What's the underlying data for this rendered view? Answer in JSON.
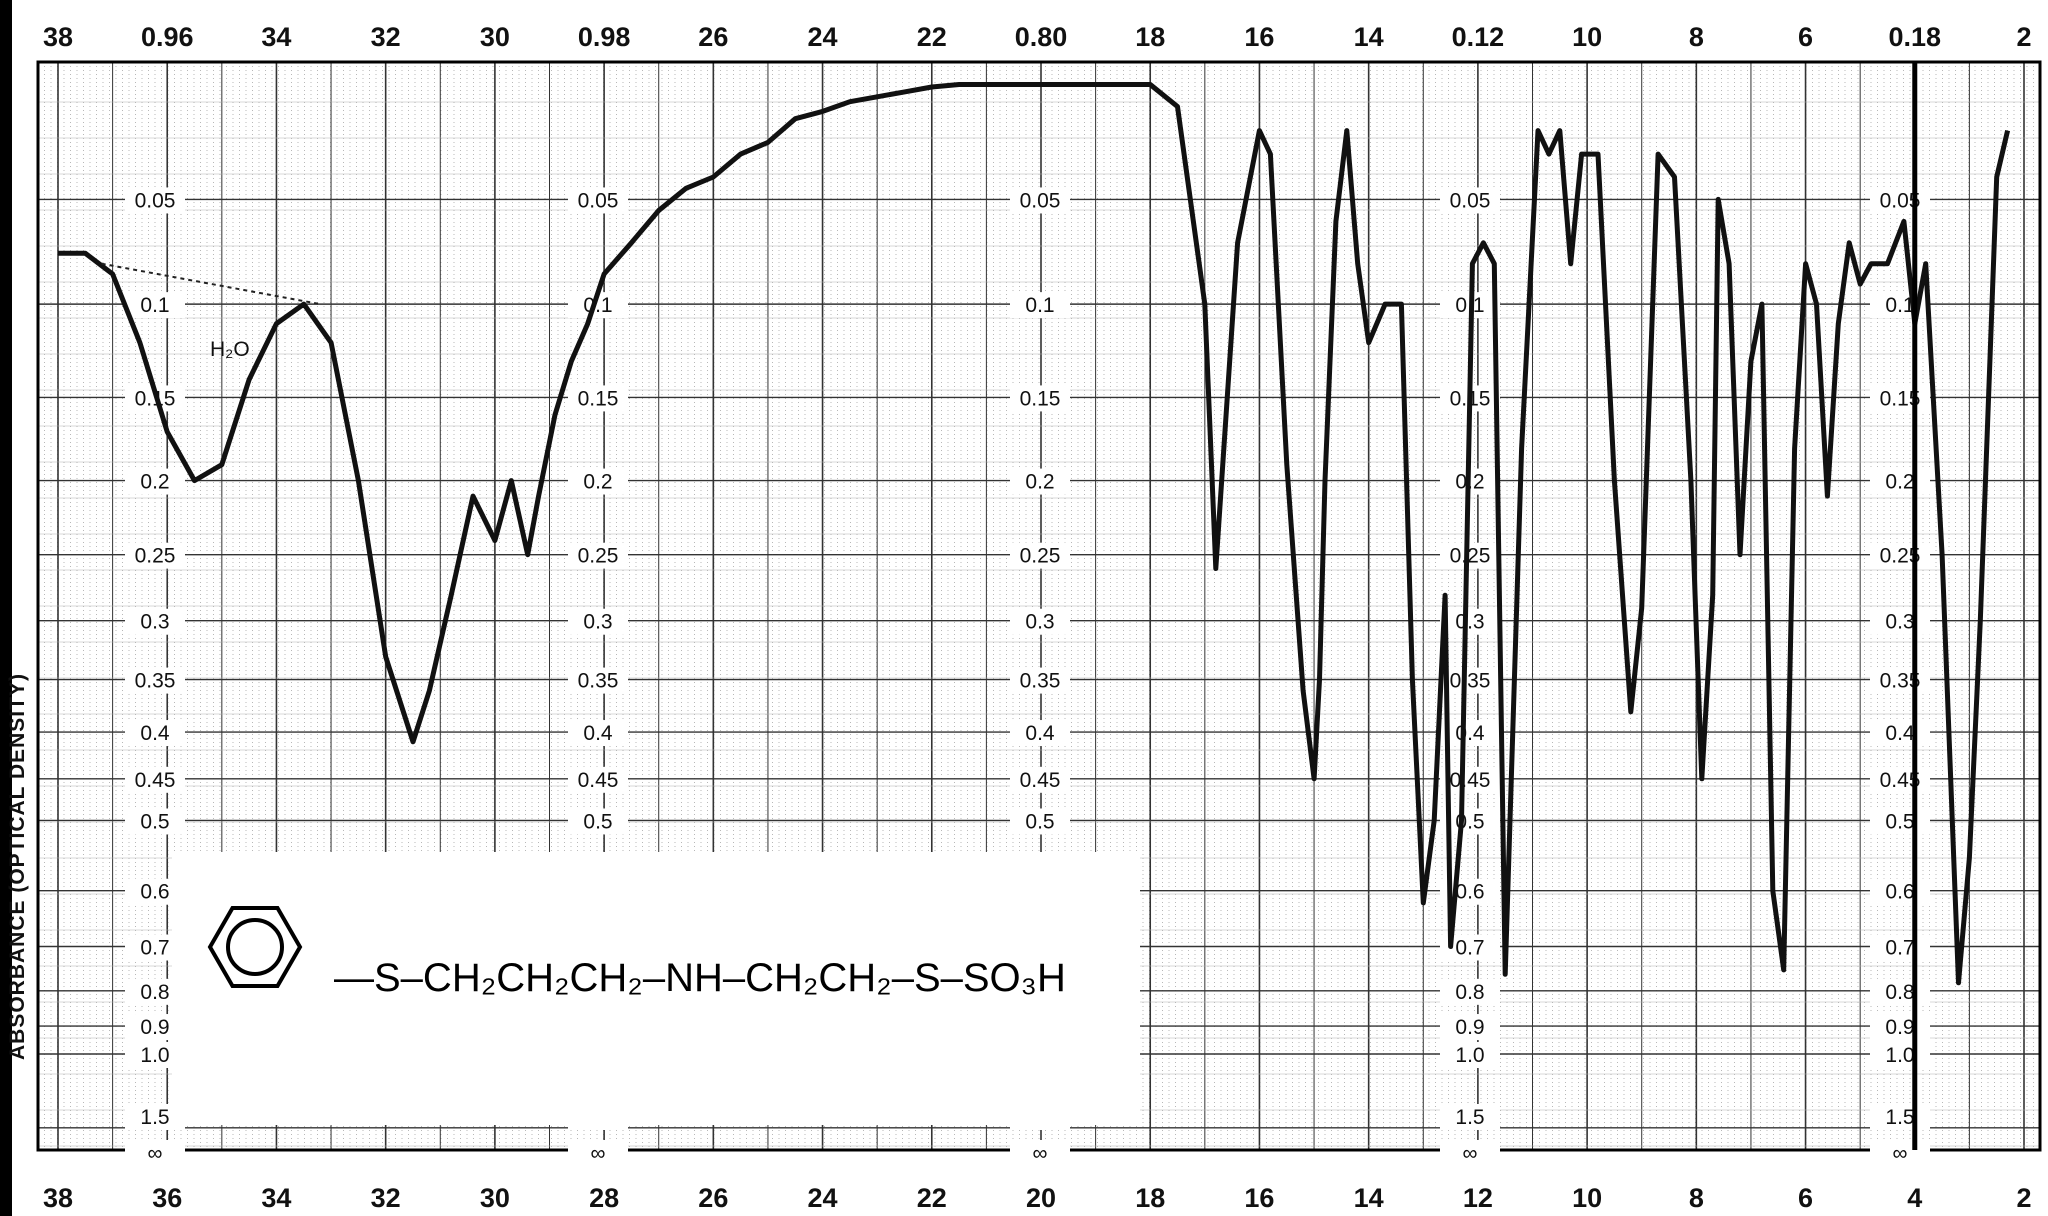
{
  "axes": {
    "ylabel": "ABSORBANCE (OPTICAL DENSITY)",
    "top_ticks": [
      "38",
      "0.96",
      "34",
      "32",
      "30",
      "0.98",
      "26",
      "24",
      "22",
      "0.80",
      "18",
      "16",
      "14",
      "0.12",
      "10",
      "8",
      "6",
      "0.18",
      "2"
    ],
    "bottom_ticks": [
      "38",
      "36",
      "34",
      "32",
      "30",
      "28",
      "26",
      "24",
      "22",
      "20",
      "18",
      "16",
      "14",
      "12",
      "10",
      "8",
      "6",
      "4",
      "2"
    ],
    "absorbance_labels": [
      "0.05",
      "0.1",
      "0.15",
      "0.2",
      "0.25",
      "0.3",
      "0.35",
      "0.4",
      "0.45",
      "0.5",
      "0.6",
      "0.7",
      "0.8",
      "0.9",
      "1.0",
      "1.5",
      "∞"
    ]
  },
  "annotation": {
    "water_label": "H₂O"
  },
  "structure": {
    "formula_text": "—S–CH₂CH₂CH₂–NH–CH₂CH₂–S–SO₃H"
  },
  "chart_data": {
    "type": "line",
    "title": "",
    "xlabel": "",
    "ylabel": "ABSORBANCE (OPTICAL DENSITY)",
    "x_direction": "decreasing",
    "xlim": [
      38,
      2
    ],
    "ylim": [
      0,
      1.5
    ],
    "series": [
      {
        "x": [
          38,
          37.5,
          37,
          36.5,
          36,
          35.5,
          35,
          34.5,
          34,
          33.5,
          33,
          32.5,
          32,
          31.5,
          31.2,
          30.8,
          30.4,
          30,
          29.7,
          29.4,
          29.2,
          28.9,
          28.6,
          28.3,
          28,
          27.5,
          27,
          26.5,
          26,
          25.5,
          25,
          24.5,
          24,
          23.5,
          23,
          22.5,
          22,
          21.5,
          21,
          20.5,
          20,
          19.5,
          19,
          18.5,
          18,
          17.5,
          17,
          16.8,
          16.4,
          16,
          15.8,
          15.5,
          15.2,
          15,
          14.9,
          14.8,
          14.6,
          14.4,
          14.2,
          14,
          13.7,
          13.4,
          13.2,
          13.0,
          12.8,
          12.6,
          12.5,
          12.3,
          12.1,
          11.9,
          11.7,
          11.5,
          11.2,
          10.9,
          10.7,
          10.5,
          10.3,
          10.1,
          9.8,
          9.5,
          9.2,
          9.0,
          8.7,
          8.4,
          8.1,
          7.9,
          7.7,
          7.6,
          7.4,
          7.2,
          7.0,
          6.8,
          6.6,
          6.4,
          6.2,
          6.0,
          5.8,
          5.6,
          5.4,
          5.2,
          5.0,
          4.8,
          4.5,
          4.2,
          4.0,
          3.8,
          3.5,
          3.2,
          3.0,
          2.8,
          2.5,
          2.3
        ],
        "y": [
          0.075,
          0.075,
          0.085,
          0.12,
          0.17,
          0.2,
          0.19,
          0.14,
          0.11,
          0.1,
          0.12,
          0.2,
          0.33,
          0.41,
          0.36,
          0.28,
          0.21,
          0.24,
          0.2,
          0.25,
          0.21,
          0.16,
          0.13,
          0.11,
          0.085,
          0.07,
          0.055,
          0.045,
          0.04,
          0.03,
          0.025,
          0.015,
          0.012,
          0.008,
          0.006,
          0.004,
          0.002,
          0.001,
          0.001,
          0.001,
          0.001,
          0.001,
          0.001,
          0.001,
          0.001,
          0.01,
          0.1,
          0.26,
          0.07,
          0.02,
          0.03,
          0.19,
          0.36,
          0.45,
          0.35,
          0.2,
          0.06,
          0.02,
          0.08,
          0.12,
          0.1,
          0.1,
          0.35,
          0.62,
          0.5,
          0.28,
          0.7,
          0.5,
          0.08,
          0.07,
          0.08,
          0.76,
          0.18,
          0.02,
          0.03,
          0.02,
          0.08,
          0.03,
          0.03,
          0.2,
          0.38,
          0.29,
          0.03,
          0.04,
          0.2,
          0.45,
          0.28,
          0.05,
          0.08,
          0.25,
          0.13,
          0.1,
          0.6,
          0.75,
          0.18,
          0.08,
          0.1,
          0.21,
          0.11,
          0.07,
          0.09,
          0.08,
          0.08,
          0.06,
          0.11,
          0.08,
          0.25,
          0.78,
          0.55,
          0.3,
          0.04,
          0.02
        ]
      }
    ]
  },
  "colors": {
    "grid": "#333333",
    "trace": "#111111",
    "paper": "#ffffff"
  }
}
